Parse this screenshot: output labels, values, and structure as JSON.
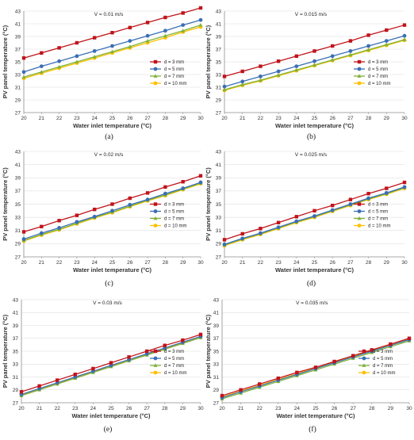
{
  "figure": {
    "panels": [
      {
        "caption": "(a)",
        "velocity": "V = 0.01 m/s"
      },
      {
        "caption": "(b)",
        "velocity": "V = 0.015 m/s"
      },
      {
        "caption": "(c)",
        "velocity": "V = 0.02 m/s"
      },
      {
        "caption": "(d)",
        "velocity": "V = 0.025 m/s"
      },
      {
        "caption": "(e)",
        "velocity": "V = 0.03 m/s"
      },
      {
        "caption": "(f)",
        "velocity": "V = 0.035 m/s"
      }
    ]
  },
  "chart_data": [
    {
      "type": "line",
      "title": "V = 0.01 m/s",
      "xlabel": "Water inlet temperature (°C)",
      "ylabel": "PV panel temperature (°C)",
      "xlim": [
        20,
        30
      ],
      "ylim": [
        27,
        43
      ],
      "xticks": [
        "20",
        "21",
        "22",
        "23",
        "24",
        "25",
        "26",
        "27",
        "28",
        "29",
        "30"
      ],
      "yticks": [
        "27",
        "29",
        "31",
        "33",
        "35",
        "37",
        "39",
        "41",
        "43"
      ],
      "grid": true,
      "legend_position": "right-center",
      "x": [
        20,
        21,
        22,
        23,
        24,
        25,
        26,
        27,
        28,
        29,
        30
      ],
      "series": [
        {
          "name": "d = 3 mm",
          "color": "#c0141b",
          "marker": "square",
          "values": [
            35.6,
            36.4,
            37.2,
            38.0,
            38.8,
            39.6,
            40.4,
            41.2,
            42.0,
            42.7,
            43.5
          ]
        },
        {
          "name": "d = 5 mm",
          "color": "#3a6fb5",
          "marker": "circle",
          "values": [
            33.4,
            34.3,
            35.1,
            35.9,
            36.7,
            37.5,
            38.3,
            39.1,
            39.9,
            40.8,
            41.6
          ]
        },
        {
          "name": "d = 7 mm",
          "color": "#7fb23a",
          "marker": "triangle",
          "values": [
            32.6,
            33.4,
            34.2,
            35.0,
            35.8,
            36.6,
            37.4,
            38.3,
            39.1,
            39.9,
            40.8
          ]
        },
        {
          "name": "d = 10 mm",
          "color": "#ffc000",
          "marker": "circle",
          "values": [
            32.4,
            33.2,
            34.0,
            34.8,
            35.6,
            36.4,
            37.2,
            38.0,
            38.8,
            39.7,
            40.5
          ]
        }
      ]
    },
    {
      "type": "line",
      "title": "V = 0.015 m/s",
      "xlabel": "Water inlet temperature (°C)",
      "ylabel": "PV panel temperature (°C)",
      "xlim": [
        20,
        30
      ],
      "ylim": [
        27,
        43
      ],
      "xticks": [
        "20",
        "21",
        "22",
        "23",
        "24",
        "25",
        "26",
        "27",
        "28",
        "29",
        "30"
      ],
      "yticks": [
        "27",
        "29",
        "31",
        "33",
        "35",
        "37",
        "39",
        "41",
        "43"
      ],
      "grid": true,
      "legend_position": "right-center",
      "x": [
        20,
        21,
        22,
        23,
        24,
        25,
        26,
        27,
        28,
        29,
        30
      ],
      "series": [
        {
          "name": "d = 3 mm",
          "color": "#c0141b",
          "marker": "square",
          "values": [
            32.7,
            33.5,
            34.3,
            35.1,
            35.9,
            36.7,
            37.5,
            38.3,
            39.2,
            40.0,
            40.8
          ]
        },
        {
          "name": "d = 5 mm",
          "color": "#3a6fb5",
          "marker": "circle",
          "values": [
            31.1,
            31.9,
            32.7,
            33.5,
            34.3,
            35.1,
            35.9,
            36.7,
            37.5,
            38.3,
            39.1
          ]
        },
        {
          "name": "d = 7 mm",
          "color": "#7fb23a",
          "marker": "triangle",
          "values": [
            30.6,
            31.4,
            32.1,
            32.9,
            33.7,
            34.5,
            35.3,
            36.1,
            36.9,
            37.7,
            38.5
          ]
        },
        {
          "name": "d = 10 mm",
          "color": "#ffc000",
          "marker": "circle",
          "values": [
            30.5,
            31.3,
            32.0,
            32.8,
            33.6,
            34.4,
            35.2,
            36.0,
            36.8,
            37.6,
            38.4
          ]
        }
      ]
    },
    {
      "type": "line",
      "title": "V = 0.02 m/s",
      "xlabel": "Water inlet temperature (°C)",
      "ylabel": "PV panel temperature (°C)",
      "xlim": [
        20,
        30
      ],
      "ylim": [
        27,
        43
      ],
      "xticks": [
        "20",
        "21",
        "22",
        "23",
        "24",
        "25",
        "26",
        "27",
        "28",
        "29",
        "30"
      ],
      "yticks": [
        "27",
        "29",
        "31",
        "33",
        "35",
        "37",
        "39",
        "41",
        "43"
      ],
      "grid": true,
      "legend_position": "right-center",
      "x": [
        20,
        21,
        22,
        23,
        24,
        25,
        26,
        27,
        28,
        29,
        30
      ],
      "series": [
        {
          "name": "d = 3 mm",
          "color": "#c0141b",
          "marker": "square",
          "values": [
            30.8,
            31.6,
            32.5,
            33.3,
            34.2,
            35.0,
            35.9,
            36.7,
            37.6,
            38.4,
            39.3
          ]
        },
        {
          "name": "d = 5 mm",
          "color": "#3a6fb5",
          "marker": "circle",
          "values": [
            29.7,
            30.6,
            31.4,
            32.3,
            33.1,
            34.0,
            34.9,
            35.7,
            36.6,
            37.4,
            38.3
          ]
        },
        {
          "name": "d = 7 mm",
          "color": "#7fb23a",
          "marker": "triangle",
          "values": [
            29.5,
            30.4,
            31.2,
            32.1,
            33.0,
            33.8,
            34.7,
            35.6,
            36.4,
            37.3,
            38.2
          ]
        },
        {
          "name": "d = 10 mm",
          "color": "#ffc000",
          "marker": "circle",
          "values": [
            29.4,
            30.3,
            31.1,
            32.0,
            32.9,
            33.7,
            34.6,
            35.5,
            36.3,
            37.2,
            38.1
          ]
        }
      ]
    },
    {
      "type": "line",
      "title": "V = 0.025 m/s",
      "xlabel": "Water inlet temperature (°C)",
      "ylabel": "PV panel temperature (°C)",
      "xlim": [
        20,
        30
      ],
      "ylim": [
        27,
        43
      ],
      "xticks": [
        "20",
        "21",
        "22",
        "23",
        "24",
        "25",
        "26",
        "27",
        "28",
        "29",
        "30"
      ],
      "yticks": [
        "27",
        "29",
        "31",
        "33",
        "35",
        "37",
        "39",
        "41",
        "43"
      ],
      "grid": true,
      "legend_position": "right-center",
      "x": [
        20,
        21,
        22,
        23,
        24,
        25,
        26,
        27,
        28,
        29,
        30
      ],
      "series": [
        {
          "name": "d = 3 mm",
          "color": "#c0141b",
          "marker": "square",
          "values": [
            29.6,
            30.5,
            31.3,
            32.2,
            33.1,
            34.0,
            34.8,
            35.7,
            36.6,
            37.4,
            38.3
          ]
        },
        {
          "name": "d = 5 mm",
          "color": "#3a6fb5",
          "marker": "circle",
          "values": [
            28.9,
            29.8,
            30.6,
            31.5,
            32.4,
            33.2,
            34.1,
            35.0,
            35.9,
            36.7,
            37.6
          ]
        },
        {
          "name": "d = 7 mm",
          "color": "#7fb23a",
          "marker": "triangle",
          "values": [
            28.8,
            29.7,
            30.5,
            31.4,
            32.3,
            33.1,
            34.0,
            34.9,
            35.8,
            36.6,
            37.5
          ]
        },
        {
          "name": "d = 10 mm",
          "color": "#ffc000",
          "marker": "circle",
          "values": [
            28.7,
            29.6,
            30.4,
            31.3,
            32.2,
            33.0,
            33.9,
            34.8,
            35.7,
            36.5,
            37.4
          ]
        }
      ]
    },
    {
      "type": "line",
      "title": "V = 0.03 m/s",
      "xlabel": "Water inlet temperature (°C)",
      "ylabel": "PV panel temperature (°C)",
      "xlim": [
        20,
        30
      ],
      "ylim": [
        27,
        43
      ],
      "xticks": [
        "20",
        "21",
        "22",
        "23",
        "24",
        "25",
        "26",
        "27",
        "28",
        "29",
        "30"
      ],
      "yticks": [
        "27",
        "29",
        "31",
        "33",
        "35",
        "37",
        "39",
        "41",
        "43"
      ],
      "grid": true,
      "legend_position": "right-center",
      "x": [
        20,
        21,
        22,
        23,
        24,
        25,
        26,
        27,
        28,
        29,
        30
      ],
      "series": [
        {
          "name": "d = 3 mm",
          "color": "#c0141b",
          "marker": "square",
          "values": [
            28.7,
            29.6,
            30.5,
            31.4,
            32.3,
            33.2,
            34.1,
            35.0,
            35.9,
            36.7,
            37.6
          ]
        },
        {
          "name": "d = 5 mm",
          "color": "#3a6fb5",
          "marker": "circle",
          "values": [
            28.3,
            29.2,
            30.1,
            31.0,
            31.9,
            32.8,
            33.7,
            34.6,
            35.5,
            36.4,
            37.3
          ]
        },
        {
          "name": "d = 7 mm",
          "color": "#7fb23a",
          "marker": "triangle",
          "values": [
            28.1,
            29.0,
            29.9,
            30.8,
            31.7,
            32.6,
            33.5,
            34.4,
            35.3,
            36.2,
            37.1
          ]
        },
        {
          "name": "d = 10 mm",
          "color": "#ffc000",
          "marker": "circle",
          "values": [
            28.2,
            29.1,
            30.0,
            30.9,
            31.8,
            32.7,
            33.6,
            34.5,
            35.4,
            36.3,
            37.2
          ]
        }
      ]
    },
    {
      "type": "line",
      "title": "V = 0.035 m/s",
      "xlabel": "Water inlet temperature (°C)",
      "ylabel": "PV panel temperature (°C)",
      "xlim": [
        20,
        30
      ],
      "ylim": [
        27,
        43
      ],
      "xticks": [
        "20",
        "21",
        "22",
        "23",
        "24",
        "25",
        "26",
        "27",
        "28",
        "29",
        "30"
      ],
      "yticks": [
        "27",
        "29",
        "31",
        "33",
        "35",
        "37",
        "39",
        "41",
        "43"
      ],
      "grid": true,
      "legend_position": "right-center",
      "x": [
        20,
        21,
        22,
        23,
        24,
        25,
        26,
        27,
        28,
        29,
        30
      ],
      "series": [
        {
          "name": "d = 3 mm",
          "color": "#c0141b",
          "marker": "square",
          "values": [
            28.1,
            29.0,
            29.9,
            30.8,
            31.7,
            32.5,
            33.4,
            34.3,
            35.2,
            36.1,
            37.0
          ]
        },
        {
          "name": "d = 5 mm",
          "color": "#3a6fb5",
          "marker": "circle",
          "values": [
            27.8,
            28.7,
            29.6,
            30.5,
            31.4,
            32.3,
            33.2,
            34.1,
            35.0,
            35.9,
            36.8
          ]
        },
        {
          "name": "d = 7 mm",
          "color": "#7fb23a",
          "marker": "triangle",
          "values": [
            27.6,
            28.5,
            29.4,
            30.3,
            31.2,
            32.1,
            33.0,
            33.9,
            34.8,
            35.7,
            36.6
          ]
        },
        {
          "name": "d = 10 mm",
          "color": "#ffc000",
          "marker": "circle",
          "values": [
            27.9,
            28.8,
            29.7,
            30.6,
            31.5,
            32.4,
            33.3,
            34.2,
            35.1,
            36.0,
            36.9
          ]
        }
      ]
    }
  ]
}
